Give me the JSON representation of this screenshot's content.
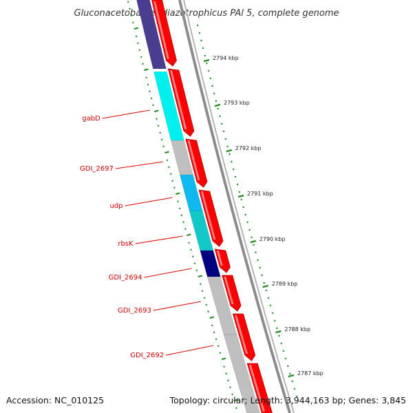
{
  "title": "Gluconacetobacter diazotrophicus PAl 5, complete genome",
  "footer": {
    "accession": "Accession: NC_010125",
    "summary": "Topology: circular; Length: 3,944,163 bp; Genes: 3,845"
  },
  "colors": {
    "forward_cds": "#ff0000",
    "backbone": "#8c8c8c",
    "tick": "#1f8a1f",
    "label_line": "#dd0000",
    "label_text": "#cc0000"
  },
  "ticks": [
    {
      "label": "2794 kbp"
    },
    {
      "label": "2793 kbp"
    },
    {
      "label": "2792 kbp"
    },
    {
      "label": "2791 kbp"
    },
    {
      "label": "2790 kbp"
    },
    {
      "label": "2789 kbp"
    },
    {
      "label": "2788 kbp"
    },
    {
      "label": "2787 kbp"
    }
  ],
  "reverse_genes": [
    {
      "color": "#4a3d8f"
    },
    {
      "label": "gabD",
      "color": "#00f0f0"
    },
    {
      "label": "GDI_2697",
      "color": "#bfbfbf"
    },
    {
      "label": "udp",
      "color": "#10b8f0"
    },
    {
      "label": "rbsK",
      "color": "#10c8c8"
    },
    {
      "label": "GDI_2694",
      "color": "#000080"
    },
    {
      "label": "GDI_2693",
      "color": "#bfbfbf"
    },
    {
      "label": "GDI_2692",
      "color": "#bfbfbf"
    }
  ]
}
